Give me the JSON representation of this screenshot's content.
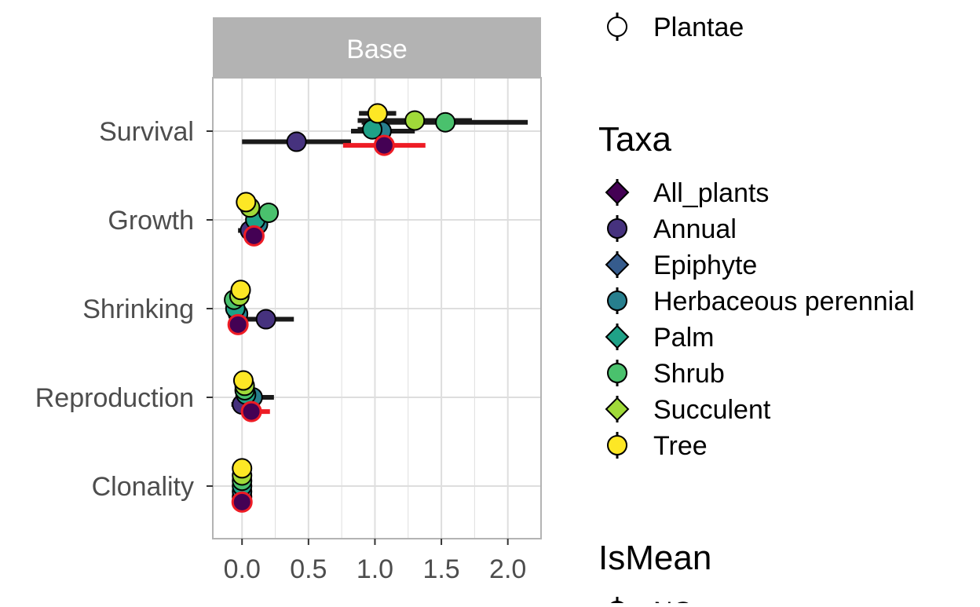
{
  "chart_data": {
    "type": "scatter",
    "facet": {
      "label": "Base"
    },
    "x_axis": {
      "range": [
        -0.22,
        2.25
      ],
      "ticks": [
        0.0,
        0.5,
        1.0,
        1.5,
        2.0
      ],
      "tick_labels": [
        "0.0",
        "0.5",
        "1.0",
        "1.5",
        "2.0"
      ]
    },
    "y_axis": {
      "categories": [
        "Survival",
        "Growth",
        "Shrinking",
        "Reproduction",
        "Clonality"
      ]
    },
    "grid": true,
    "legend": {
      "placement": "right",
      "kingdom": {
        "label": "Plantae",
        "shape": "circle"
      },
      "taxa_title": "Taxa",
      "ismean_title": "IsMean",
      "ismean_first_item": "NO",
      "taxa": [
        {
          "name": "All_plants",
          "shape": "diamond",
          "color": "#440154"
        },
        {
          "name": "Annual",
          "shape": "circle",
          "color": "#46327e"
        },
        {
          "name": "Epiphyte",
          "shape": "diamond",
          "color": "#365c8d"
        },
        {
          "name": "Herbaceous perennial",
          "shape": "circle",
          "color": "#277f8e"
        },
        {
          "name": "Palm",
          "shape": "diamond",
          "color": "#1fa187"
        },
        {
          "name": "Shrub",
          "shape": "circle",
          "color": "#4ac16d"
        },
        {
          "name": "Succulent",
          "shape": "diamond",
          "color": "#a0da39"
        },
        {
          "name": "Tree",
          "shape": "circle",
          "color": "#fde725"
        }
      ]
    },
    "points": [
      {
        "category": "Survival",
        "taxon": "Annual",
        "x": 0.41,
        "lo": 0.0,
        "hi": 0.82,
        "offset": -0.12
      },
      {
        "category": "Survival",
        "taxon": "Herbaceous perennial",
        "x": 1.05,
        "lo": 0.82,
        "hi": 1.3,
        "offset": 0.0
      },
      {
        "category": "Survival",
        "taxon": "Palm",
        "x": 0.98,
        "lo": 0.87,
        "hi": 1.1,
        "offset": 0.02
      },
      {
        "category": "Survival",
        "taxon": "Shrub",
        "x": 1.53,
        "lo": 0.9,
        "hi": 2.15,
        "offset": 0.1
      },
      {
        "category": "Survival",
        "taxon": "Succulent",
        "x": 1.3,
        "lo": 0.87,
        "hi": 1.73,
        "offset": 0.12
      },
      {
        "category": "Survival",
        "taxon": "Tree",
        "x": 1.02,
        "lo": 0.88,
        "hi": 1.16,
        "offset": 0.2
      },
      {
        "category": "Survival",
        "taxon": "All_plants",
        "x": 1.07,
        "lo": 0.76,
        "hi": 1.38,
        "offset": -0.16,
        "is_mean": true
      },
      {
        "category": "Growth",
        "taxon": "Annual",
        "x": 0.06,
        "lo": -0.03,
        "hi": 0.15,
        "offset": -0.12
      },
      {
        "category": "Growth",
        "taxon": "Herbaceous perennial",
        "x": 0.12,
        "lo": 0.06,
        "hi": 0.18,
        "offset": -0.05
      },
      {
        "category": "Growth",
        "taxon": "Palm",
        "x": 0.1,
        "lo": 0.05,
        "hi": 0.15,
        "offset": 0.0
      },
      {
        "category": "Growth",
        "taxon": "Shrub",
        "x": 0.2,
        "lo": 0.15,
        "hi": 0.25,
        "offset": 0.08
      },
      {
        "category": "Growth",
        "taxon": "Succulent",
        "x": 0.06,
        "lo": 0.02,
        "hi": 0.1,
        "offset": 0.14
      },
      {
        "category": "Growth",
        "taxon": "Tree",
        "x": 0.03,
        "lo": 0.0,
        "hi": 0.06,
        "offset": 0.2
      },
      {
        "category": "Growth",
        "taxon": "All_plants",
        "x": 0.09,
        "lo": 0.06,
        "hi": 0.12,
        "offset": -0.18,
        "is_mean": true
      },
      {
        "category": "Shrinking",
        "taxon": "Annual",
        "x": 0.18,
        "lo": -0.02,
        "hi": 0.39,
        "offset": -0.12
      },
      {
        "category": "Shrinking",
        "taxon": "Herbaceous perennial",
        "x": -0.03,
        "lo": -0.06,
        "hi": 0.0,
        "offset": -0.06
      },
      {
        "category": "Shrinking",
        "taxon": "Palm",
        "x": -0.05,
        "lo": -0.08,
        "hi": -0.02,
        "offset": 0.0
      },
      {
        "category": "Shrinking",
        "taxon": "Shrub",
        "x": -0.06,
        "lo": -0.09,
        "hi": -0.03,
        "offset": 0.1
      },
      {
        "category": "Shrinking",
        "taxon": "Succulent",
        "x": -0.02,
        "lo": -0.05,
        "hi": 0.01,
        "offset": 0.14
      },
      {
        "category": "Shrinking",
        "taxon": "Tree",
        "x": -0.01,
        "lo": -0.03,
        "hi": 0.01,
        "offset": 0.21
      },
      {
        "category": "Shrinking",
        "taxon": "All_plants",
        "x": -0.03,
        "lo": -0.05,
        "hi": -0.01,
        "offset": -0.18,
        "is_mean": true
      },
      {
        "category": "Reproduction",
        "taxon": "Annual",
        "x": 0.0,
        "lo": -0.08,
        "hi": 0.08,
        "offset": -0.08
      },
      {
        "category": "Reproduction",
        "taxon": "Herbaceous perennial",
        "x": 0.08,
        "lo": -0.05,
        "hi": 0.24,
        "offset": 0.0
      },
      {
        "category": "Reproduction",
        "taxon": "Palm",
        "x": 0.03,
        "lo": 0.0,
        "hi": 0.06,
        "offset": 0.03
      },
      {
        "category": "Reproduction",
        "taxon": "Shrub",
        "x": 0.02,
        "lo": -0.01,
        "hi": 0.05,
        "offset": 0.08
      },
      {
        "category": "Reproduction",
        "taxon": "Succulent",
        "x": 0.02,
        "lo": -0.01,
        "hi": 0.05,
        "offset": 0.13
      },
      {
        "category": "Reproduction",
        "taxon": "Tree",
        "x": 0.01,
        "lo": -0.01,
        "hi": 0.03,
        "offset": 0.19
      },
      {
        "category": "Reproduction",
        "taxon": "All_plants",
        "x": 0.07,
        "lo": 0.0,
        "hi": 0.21,
        "offset": -0.16,
        "is_mean": true
      },
      {
        "category": "Clonality",
        "taxon": "Annual",
        "x": 0.0,
        "lo": -0.01,
        "hi": 0.01,
        "offset": -0.12
      },
      {
        "category": "Clonality",
        "taxon": "Herbaceous perennial",
        "x": 0.0,
        "lo": -0.01,
        "hi": 0.01,
        "offset": -0.06
      },
      {
        "category": "Clonality",
        "taxon": "Palm",
        "x": 0.0,
        "lo": -0.01,
        "hi": 0.01,
        "offset": 0.0
      },
      {
        "category": "Clonality",
        "taxon": "Shrub",
        "x": 0.0,
        "lo": -0.01,
        "hi": 0.01,
        "offset": 0.06
      },
      {
        "category": "Clonality",
        "taxon": "Succulent",
        "x": 0.0,
        "lo": -0.01,
        "hi": 0.01,
        "offset": 0.12
      },
      {
        "category": "Clonality",
        "taxon": "Tree",
        "x": 0.0,
        "lo": -0.01,
        "hi": 0.01,
        "offset": 0.2
      },
      {
        "category": "Clonality",
        "taxon": "All_plants",
        "x": 0.0,
        "lo": -0.01,
        "hi": 0.01,
        "offset": -0.18,
        "is_mean": true
      }
    ],
    "colors": {
      "strip_background": "#b3b3b3",
      "grid": "#dedede",
      "panel_border": "#b3b3b3",
      "errorbar": "#1a1a1a",
      "mean_highlight": "#ee1c25"
    }
  }
}
